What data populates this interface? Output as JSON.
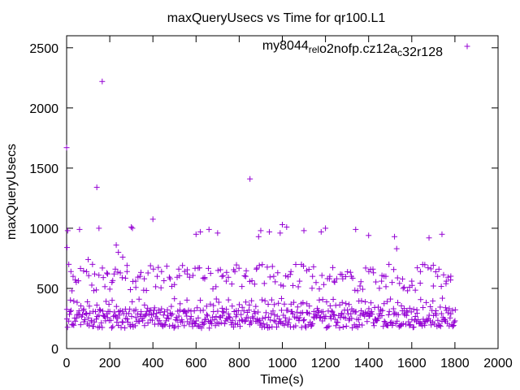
{
  "chart_data": {
    "type": "scatter",
    "title": "maxQueryUsecs vs Time for qr100.L1",
    "xlabel": "Time(s)",
    "ylabel": "maxQueryUsecs",
    "xlim": [
      0,
      2000
    ],
    "ylim": [
      0,
      2600
    ],
    "xticks": [
      "0",
      "200",
      "400",
      "600",
      "800",
      "1000",
      "1200",
      "1400",
      "1600",
      "1800",
      "2000"
    ],
    "yticks": [
      "0",
      "500",
      "1000",
      "1500",
      "2000",
      "2500"
    ],
    "grid": false,
    "legend_position": "top-right",
    "marker": "plus",
    "series": [
      {
        "name": "my8044_rel_o2nofp.cz12a_c32r128",
        "legend": {
          "parts": [
            {
              "text": "my8044",
              "sub": false
            },
            {
              "text": "rel",
              "sub": true
            },
            {
              "text": "o",
              "sub": false
            },
            {
              "text": "2nofp.cz12a",
              "sub": false
            },
            {
              "text": "c",
              "sub": true
            },
            {
              "text": "32r128",
              "sub": false
            }
          ]
        },
        "color": "#9400d3",
        "outliers": [
          [
            0,
            1670
          ],
          [
            5,
            980
          ],
          [
            2,
            840
          ],
          [
            10,
            700
          ],
          [
            20,
            640
          ],
          [
            30,
            600
          ],
          [
            40,
            570
          ],
          [
            25,
            480
          ],
          [
            60,
            990
          ],
          [
            100,
            740
          ],
          [
            120,
            700
          ],
          [
            130,
            620
          ],
          [
            140,
            1340
          ],
          [
            150,
            1000
          ],
          [
            165,
            2220
          ],
          [
            170,
            590
          ],
          [
            190,
            620
          ],
          [
            210,
            550
          ],
          [
            220,
            620
          ],
          [
            230,
            860
          ],
          [
            240,
            800
          ],
          [
            260,
            760
          ],
          [
            280,
            640
          ],
          [
            300,
            1010
          ],
          [
            305,
            1000
          ],
          [
            320,
            560
          ],
          [
            340,
            600
          ],
          [
            360,
            580
          ],
          [
            400,
            1075
          ],
          [
            420,
            600
          ],
          [
            440,
            640
          ],
          [
            480,
            580
          ],
          [
            520,
            660
          ],
          [
            560,
            620
          ],
          [
            600,
            950
          ],
          [
            620,
            970
          ],
          [
            640,
            580
          ],
          [
            660,
            990
          ],
          [
            700,
            960
          ],
          [
            720,
            600
          ],
          [
            740,
            560
          ],
          [
            780,
            640
          ],
          [
            830,
            600
          ],
          [
            850,
            1410
          ],
          [
            880,
            660
          ],
          [
            890,
            930
          ],
          [
            900,
            980
          ],
          [
            940,
            970
          ],
          [
            960,
            600
          ],
          [
            990,
            960
          ],
          [
            1000,
            1030
          ],
          [
            1020,
            1010
          ],
          [
            1040,
            640
          ],
          [
            1080,
            560
          ],
          [
            1100,
            980
          ],
          [
            1140,
            600
          ],
          [
            1180,
            970
          ],
          [
            1200,
            1000
          ],
          [
            1220,
            600
          ],
          [
            1240,
            560
          ],
          [
            1280,
            580
          ],
          [
            1320,
            600
          ],
          [
            1340,
            990
          ],
          [
            1360,
            520
          ],
          [
            1400,
            940
          ],
          [
            1420,
            660
          ],
          [
            1460,
            560
          ],
          [
            1480,
            600
          ],
          [
            1520,
            930
          ],
          [
            1530,
            830
          ],
          [
            1560,
            500
          ],
          [
            1600,
            560
          ],
          [
            1640,
            640
          ],
          [
            1680,
            920
          ],
          [
            1700,
            520
          ],
          [
            1720,
            600
          ],
          [
            1740,
            950
          ],
          [
            1760,
            560
          ],
          [
            1780,
            570
          ]
        ],
        "bands": [
          {
            "x_start": 0,
            "x_end": 1800,
            "step": 4,
            "y_min": 170,
            "y_max": 320
          },
          {
            "x_start": 0,
            "x_end": 1800,
            "step": 15,
            "y_min": 300,
            "y_max": 420
          },
          {
            "x_start": 40,
            "x_end": 1780,
            "step": 12,
            "y_min": 480,
            "y_max": 700
          }
        ]
      }
    ]
  }
}
